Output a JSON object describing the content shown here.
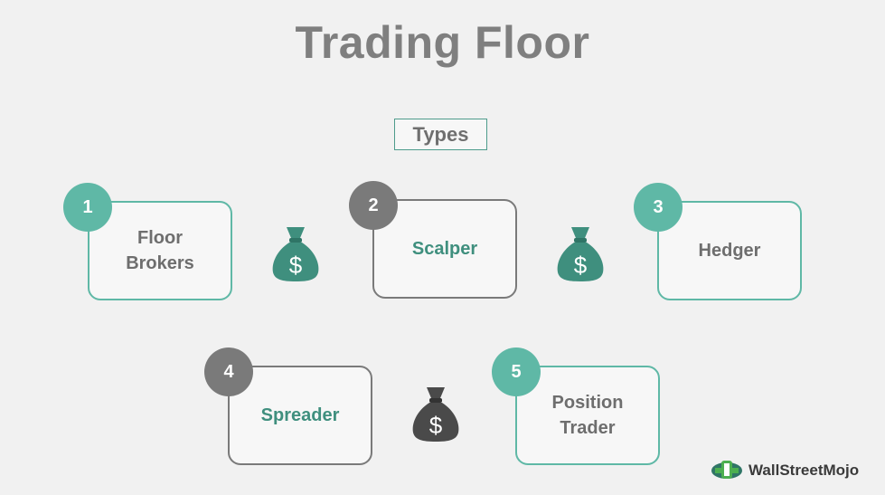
{
  "title": "Trading Floor",
  "types_label": "Types",
  "items": [
    {
      "number": "1",
      "label": "Floor\nBrokers"
    },
    {
      "number": "2",
      "label": "Scalper"
    },
    {
      "number": "3",
      "label": "Hedger"
    },
    {
      "number": "4",
      "label": "Spreader"
    },
    {
      "number": "5",
      "label": "Position\nTrader"
    }
  ],
  "bag_symbol": "$",
  "icons": [
    "money-bag-icon",
    "wallstreetmojo-logo-icon"
  ],
  "colors": {
    "teal": "#5fb8a6",
    "gray": "#7a7a7a",
    "bag_teal": "#3f8f7e",
    "bag_dark": "#4a4a4a",
    "title_gray": "#7f7f7f"
  },
  "logo": {
    "text": "WallStreetMojo"
  }
}
